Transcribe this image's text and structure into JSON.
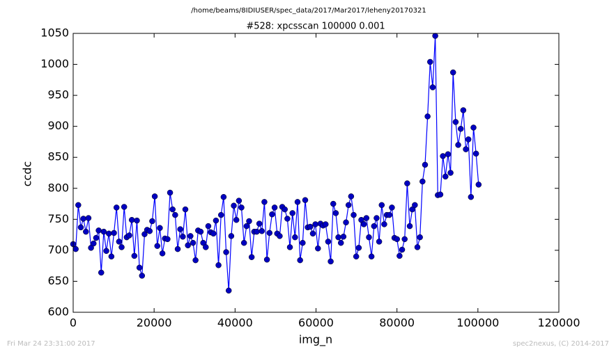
{
  "chart_data": {
    "type": "line",
    "title": "/home/beams/8IDIUSER/spec_data/2017/Mar2017/leheny20170321",
    "subtitle": "#528: xpcsscan 100000 0.001",
    "xlabel": "img_n",
    "ylabel": "ccdc",
    "color": "#0000ff",
    "marker_color": "#0000c0",
    "xlim": [
      0,
      120000
    ],
    "xticks": [
      0,
      20000,
      40000,
      60000,
      80000,
      100000,
      120000
    ],
    "ylim": [
      600,
      1050
    ],
    "yticks": [
      600,
      650,
      700,
      750,
      800,
      850,
      900,
      950,
      1000,
      1050
    ],
    "x": [
      0,
      630,
      1260,
      1890,
      2520,
      3150,
      3780,
      4410,
      5040,
      5670,
      6300,
      6930,
      7560,
      8190,
      8820,
      9450,
      10080,
      10710,
      11340,
      11970,
      12600,
      13230,
      13860,
      14490,
      15120,
      15750,
      16380,
      17010,
      17640,
      18270,
      18900,
      19530,
      20160,
      20790,
      21420,
      22050,
      22680,
      23310,
      23940,
      24570,
      25200,
      25830,
      26460,
      27090,
      27720,
      28350,
      28980,
      29610,
      30240,
      30870,
      31500,
      32130,
      32760,
      33390,
      34020,
      34650,
      35280,
      35910,
      36540,
      37170,
      37800,
      38430,
      39060,
      39690,
      40320,
      40950,
      41580,
      42210,
      42840,
      43470,
      44100,
      44730,
      45360,
      45990,
      46620,
      47250,
      47880,
      48510,
      49140,
      49770,
      50400,
      51030,
      51660,
      52290,
      52920,
      53550,
      54180,
      54810,
      55440,
      56070,
      56700,
      57330,
      57960,
      58590,
      59220,
      59850,
      60480,
      61110,
      61740,
      62370,
      63000,
      63630,
      64260,
      64890,
      65520,
      66150,
      66780,
      67410,
      68040,
      68670,
      69300,
      69930,
      70560,
      71190,
      71820,
      72450,
      73080,
      73710,
      74340,
      74970,
      75600,
      76230,
      76860,
      77490,
      78120,
      78750,
      79380,
      80010,
      80640,
      81270,
      81900,
      82530,
      83160,
      83790,
      84420,
      85050,
      85680,
      86310,
      86940,
      87570,
      88200,
      88830,
      89460,
      90090,
      90720,
      91350,
      91980,
      92610,
      93240,
      93870,
      94500,
      95130,
      95760,
      96390,
      97020,
      97650,
      98280,
      98910,
      99540,
      100170
    ],
    "values": [
      710,
      702,
      773,
      737,
      751,
      730,
      752,
      704,
      711,
      720,
      732,
      664,
      730,
      699,
      727,
      690,
      728,
      769,
      714,
      705,
      770,
      721,
      724,
      749,
      691,
      748,
      672,
      659,
      726,
      733,
      731,
      747,
      787,
      707,
      736,
      695,
      719,
      718,
      793,
      766,
      757,
      702,
      734,
      722,
      766,
      708,
      723,
      712,
      684,
      732,
      730,
      712,
      705,
      739,
      729,
      727,
      748,
      676,
      757,
      786,
      697,
      635,
      723,
      772,
      749,
      780,
      769,
      712,
      739,
      747,
      689,
      730,
      730,
      743,
      731,
      778,
      685,
      728,
      758,
      769,
      727,
      723,
      770,
      766,
      751,
      705,
      760,
      721,
      778,
      684,
      712,
      781,
      737,
      738,
      727,
      742,
      703,
      743,
      740,
      742,
      714,
      682,
      775,
      760,
      721,
      712,
      722,
      745,
      773,
      787,
      757,
      690,
      704,
      749,
      742,
      752,
      721,
      690,
      739,
      752,
      714,
      773,
      742,
      757,
      757,
      769,
      720,
      718,
      691,
      701,
      718,
      808,
      739,
      766,
      773,
      705,
      721,
      811,
      838,
      916,
      1004,
      963,
      1046,
      789,
      790,
      852,
      819,
      855,
      825,
      987,
      907,
      870,
      896,
      926,
      863,
      879,
      786,
      898,
      856,
      806
    ]
  },
  "footer": {
    "left": "Fri Mar 24 23:31:00 2017",
    "right": "spec2nexus, (C) 2014-2017"
  }
}
